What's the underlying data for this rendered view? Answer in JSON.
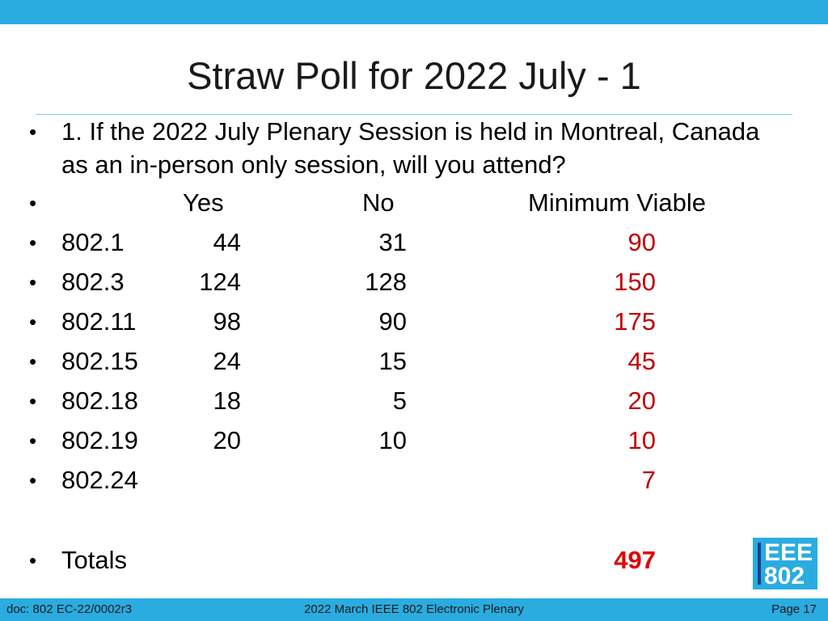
{
  "slide": {
    "title": "Straw Poll for 2022 July - 1",
    "question": "1. If the 2022 July Plenary Session is held in Montreal, Canada as an in-person only session, will you attend?",
    "bullet_symbol": "•",
    "headers": {
      "yes": "Yes",
      "no": "No",
      "minimum": "Minimum Viable"
    },
    "rows": [
      {
        "group": "802.1",
        "yes": "44",
        "no": "31",
        "minimum": "90"
      },
      {
        "group": "802.3",
        "yes": "124",
        "no": "128",
        "minimum": "150"
      },
      {
        "group": "802.11",
        "yes": "98",
        "no": "90",
        "minimum": "175"
      },
      {
        "group": "802.15",
        "yes": "24",
        "no": "15",
        "minimum": "45"
      },
      {
        "group": "802.18",
        "yes": "18",
        "no": "5",
        "minimum": "20"
      },
      {
        "group": "802.19",
        "yes": "20",
        "no": "10",
        "minimum": "10"
      },
      {
        "group": "802.24",
        "yes": "",
        "no": "",
        "minimum": "7"
      }
    ],
    "totals": {
      "label": "Totals",
      "minimum": "497"
    }
  },
  "logo": {
    "line1": "EEE",
    "line2": "802"
  },
  "footer": {
    "doc": "doc: 802 EC-22/0002r3",
    "center": "2022 March IEEE 802 Electronic Plenary",
    "page": "Page 17"
  },
  "colors": {
    "accent_bar": "#2aace0",
    "minimum_value": "#c00000",
    "total_value": "#e00000"
  }
}
